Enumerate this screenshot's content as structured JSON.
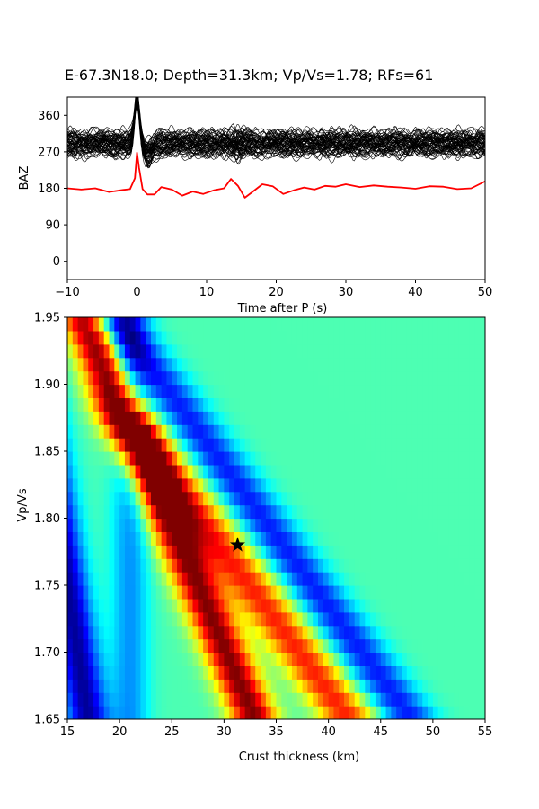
{
  "title": "E-67.3N18.0; Depth=31.3km; Vp/Vs=1.78; RFs=61",
  "chart_data": [
    {
      "type": "line",
      "title": "E-67.3N18.0; Depth=31.3km; Vp/Vs=1.78; RFs=61",
      "xlabel": "Time after P (s)",
      "ylabel": "BAZ",
      "xlim": [
        -10,
        50
      ],
      "ylim": [
        -45,
        405
      ],
      "xticks": [
        -10,
        0,
        10,
        20,
        30,
        40,
        50
      ],
      "yticks": [
        0,
        90,
        180,
        270,
        360
      ],
      "grid": false,
      "series": [
        {
          "color": "#ff0000",
          "x": [
            -10,
            -8,
            -6,
            -4,
            -2,
            -1,
            -0.3,
            0,
            0.3,
            0.8,
            1.5,
            2.5,
            3.5,
            5,
            6.5,
            8,
            9.5,
            11,
            12.5,
            13.5,
            14.5,
            15.5,
            16.5,
            18,
            19.5,
            21,
            22.5,
            24,
            25.5,
            27,
            28.5,
            30,
            32,
            34,
            36,
            38,
            40,
            42,
            44,
            46,
            48,
            50
          ],
          "y": [
            180,
            177,
            180,
            171,
            176,
            178,
            205,
            268,
            230,
            178,
            165,
            165,
            183,
            177,
            162,
            172,
            166,
            175,
            180,
            203,
            186,
            157,
            170,
            190,
            185,
            166,
            175,
            182,
            177,
            186,
            184,
            190,
            183,
            187,
            184,
            182,
            179,
            185,
            184,
            178,
            180,
            197
          ]
        }
      ],
      "black_traces": {
        "count": 61,
        "color": "#000000",
        "center_baz": 290,
        "spread": [
          262,
          316
        ],
        "peak_time": 0,
        "peak_baz": 400
      }
    },
    {
      "type": "heatmap",
      "xlabel": "Crust thickness (km)",
      "ylabel": "Vp/Vs",
      "xlim": [
        15,
        55
      ],
      "ylim": [
        1.65,
        1.95
      ],
      "xticks": [
        15,
        20,
        25,
        30,
        35,
        40,
        45,
        50,
        55
      ],
      "yticks": [
        "1.65",
        "1.70",
        "1.75",
        "1.80",
        "1.85",
        "1.90",
        "1.95"
      ],
      "colormap": "jet",
      "best_marker": {
        "H": 31.3,
        "k": 1.78
      },
      "grid_nx": 80,
      "grid_ny": 30,
      "model": {
        "main_ridge": {
          "H_at_k165": 33,
          "slope_km_per_unit": -55,
          "width": 2.2,
          "amp": 1.0
        },
        "second_ridge": {
          "H_at_k165": 42,
          "slope_km_per_unit": -95,
          "width": 2.6,
          "amp": 0.72,
          "k_range": [
            1.65,
            1.86
          ]
        },
        "trough": {
          "H_at_k165": 17,
          "slope_km_per_unit": -20,
          "width": 2.0,
          "amp": -0.85
        }
      }
    }
  ]
}
